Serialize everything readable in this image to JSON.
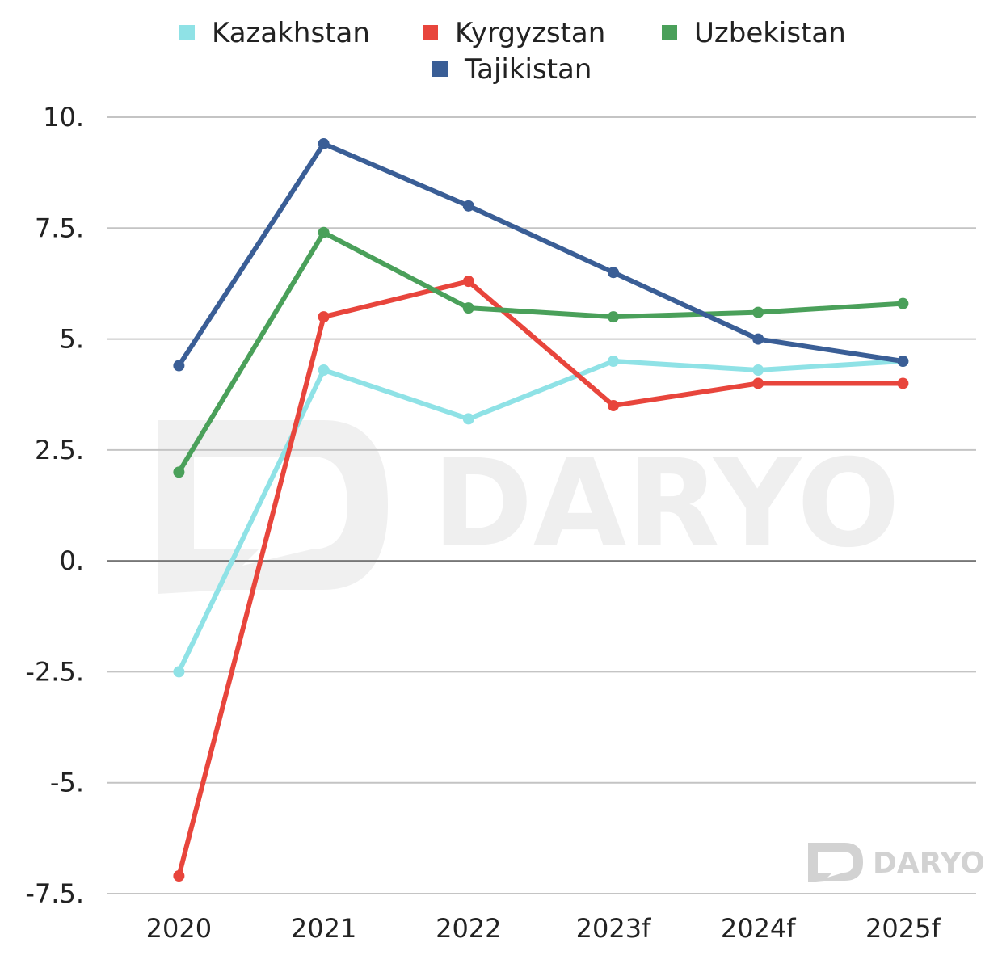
{
  "chart_data": {
    "type": "line",
    "categories": [
      "2020",
      "2021",
      "2022",
      "2023f",
      "2024f",
      "2025f"
    ],
    "y_ticks": [
      "10.",
      "7.5.",
      "5.",
      "2.5.",
      "0.",
      "-2.5.",
      "-5.",
      "-7.5."
    ],
    "ylim": [
      -7.5,
      10
    ],
    "grid": true,
    "legend_position": "top-center",
    "series": [
      {
        "name": "Kazakhstan",
        "color": "#8fe2e6",
        "values": [
          -2.5,
          4.3,
          3.2,
          4.5,
          4.3,
          4.5
        ]
      },
      {
        "name": "Kyrgyzstan",
        "color": "#e8453c",
        "values": [
          -7.1,
          5.5,
          6.3,
          3.5,
          4.0,
          4.0
        ]
      },
      {
        "name": "Uzbekistan",
        "color": "#4aa05a",
        "values": [
          2.0,
          7.4,
          5.7,
          5.5,
          5.6,
          5.8
        ]
      },
      {
        "name": "Tajikistan",
        "color": "#3a5e96",
        "values": [
          4.4,
          9.4,
          8.0,
          6.5,
          5.0,
          4.5
        ]
      }
    ]
  },
  "watermark": {
    "text": "DARYO"
  }
}
